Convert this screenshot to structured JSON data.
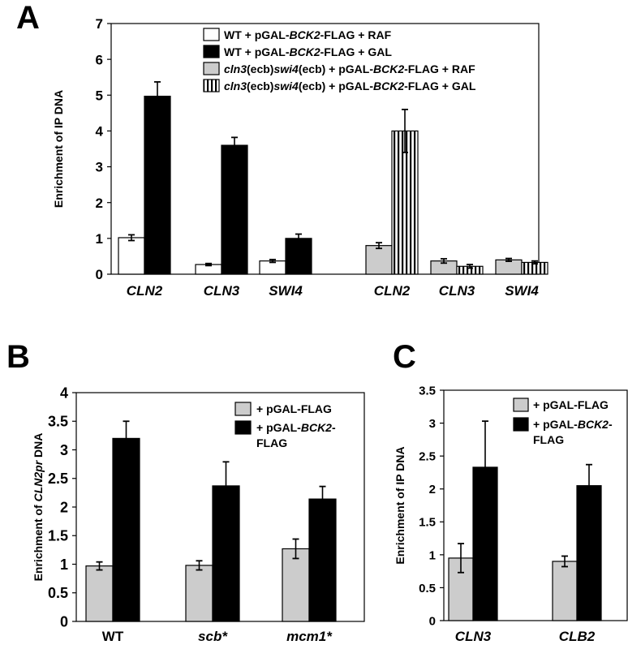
{
  "colors": {
    "white": "#ffffff",
    "black": "#000000",
    "gray": "#cccccc",
    "frame": "#000000"
  },
  "chart_data": [
    {
      "id": "A",
      "type": "bar",
      "panel_label": "A",
      "ylabel": "Enrichment of IP DNA",
      "ylim": [
        0,
        7
      ],
      "yticks": [
        "0",
        "1",
        "2",
        "3",
        "4",
        "5",
        "6",
        "7"
      ],
      "groups": [
        {
          "label": "CLN2",
          "italic": true
        },
        {
          "label": "CLN3",
          "italic": true
        },
        {
          "label": "SWI4",
          "italic": true
        },
        {
          "label": "CLN2",
          "italic": true
        },
        {
          "label": "CLN3",
          "italic": true
        },
        {
          "label": "SWI4",
          "italic": true
        }
      ],
      "series": [
        {
          "name_parts": [
            [
              "WT + pGAL-",
              false
            ],
            [
              "BCK2",
              true
            ],
            [
              "-FLAG + RAF",
              false
            ]
          ],
          "fill": "white",
          "values": [
            1.02,
            0.27,
            0.37,
            null,
            null,
            null
          ],
          "errors": [
            0.08,
            0.03,
            0.04,
            null,
            null,
            null
          ]
        },
        {
          "name_parts": [
            [
              "WT + pGAL-",
              false
            ],
            [
              "BCK2",
              true
            ],
            [
              "-FLAG + GAL",
              false
            ]
          ],
          "fill": "black",
          "values": [
            4.97,
            3.6,
            1.0,
            null,
            null,
            null
          ],
          "errors": [
            0.4,
            0.22,
            0.12,
            null,
            null,
            null
          ]
        },
        {
          "name_parts": [
            [
              "cln3",
              true
            ],
            [
              "(ecb)",
              false
            ],
            [
              "swi4",
              true
            ],
            [
              "(ecb) + pGAL-",
              false
            ],
            [
              "BCK2",
              true
            ],
            [
              "-FLAG + RAF",
              false
            ]
          ],
          "fill": "gray",
          "values": [
            null,
            null,
            null,
            0.8,
            0.37,
            0.4
          ],
          "errors": [
            null,
            null,
            null,
            0.08,
            0.06,
            0.04
          ]
        },
        {
          "name_parts": [
            [
              "cln3",
              true
            ],
            [
              "(ecb)",
              false
            ],
            [
              "swi4",
              true
            ],
            [
              "(ecb) + pGAL-",
              false
            ],
            [
              "BCK2",
              true
            ],
            [
              "-FLAG + GAL",
              false
            ]
          ],
          "fill": "stripes",
          "values": [
            null,
            null,
            null,
            4.0,
            0.22,
            0.33
          ],
          "errors": [
            null,
            null,
            null,
            0.6,
            0.05,
            0.04
          ]
        }
      ],
      "legend_position": "top"
    },
    {
      "id": "B",
      "type": "bar",
      "panel_label": "B",
      "ylabel_parts": [
        [
          "Enrichment of ",
          false
        ],
        [
          "CLN2pr",
          true
        ],
        [
          " DNA",
          false
        ]
      ],
      "ylim": [
        0,
        4
      ],
      "yticks": [
        "0",
        "0.5",
        "1",
        "1.5",
        "2",
        "2.5",
        "3",
        "3.5",
        "4"
      ],
      "categories": [
        {
          "label": "WT",
          "italic": false
        },
        {
          "label": "scb*",
          "italic": true
        },
        {
          "label": "mcm1*",
          "italic": true
        }
      ],
      "series": [
        {
          "name_lines": [
            [
              [
                "+ pGAL-FLAG",
                false
              ]
            ]
          ],
          "fill": "gray",
          "values": [
            0.97,
            0.98,
            1.27
          ],
          "errors": [
            0.07,
            0.08,
            0.17
          ]
        },
        {
          "name_lines": [
            [
              [
                "+ pGAL-",
                false
              ],
              [
                "BCK2",
                true
              ],
              [
                "-",
                false
              ]
            ],
            [
              [
                "FLAG",
                false
              ]
            ]
          ],
          "fill": "black",
          "values": [
            3.2,
            2.37,
            2.14
          ],
          "errors": [
            0.3,
            0.42,
            0.22
          ]
        }
      ],
      "legend_position": "top-right"
    },
    {
      "id": "C",
      "type": "bar",
      "panel_label": "C",
      "ylabel": "Enrichment of IP DNA",
      "ylim": [
        0,
        3.5
      ],
      "yticks": [
        "0",
        "0.5",
        "1",
        "1.5",
        "2",
        "2.5",
        "3",
        "3.5"
      ],
      "categories": [
        {
          "label": "CLN3",
          "italic": true
        },
        {
          "label": "CLB2",
          "italic": true
        }
      ],
      "series": [
        {
          "name_lines": [
            [
              [
                "+ pGAL-FLAG",
                false
              ]
            ]
          ],
          "fill": "gray",
          "values": [
            0.95,
            0.9
          ],
          "errors": [
            0.22,
            0.08
          ]
        },
        {
          "name_lines": [
            [
              [
                "+ pGAL-",
                false
              ],
              [
                "BCK2",
                true
              ],
              [
                "-",
                false
              ]
            ],
            [
              [
                "FLAG",
                false
              ]
            ]
          ],
          "fill": "black",
          "values": [
            2.33,
            2.05
          ],
          "errors": [
            0.7,
            0.32
          ]
        }
      ],
      "legend_position": "top-right"
    }
  ]
}
